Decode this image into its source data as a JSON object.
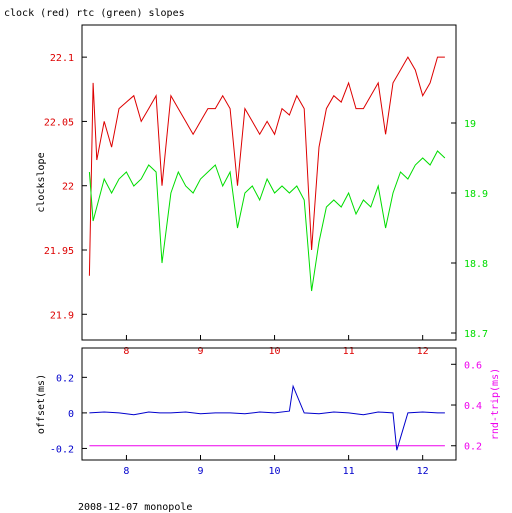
{
  "title": "clock (red) rtc (green) slopes",
  "footer": "2008-12-07 monopole",
  "colors": {
    "red": "#dd0000",
    "green": "#00dd00",
    "blue": "#0000cc",
    "magenta": "#ee00ee",
    "axis": "#000000"
  },
  "chart_data": [
    {
      "type": "line",
      "panel": "top",
      "ylabel": "clockslope",
      "xlim": [
        7.4,
        12.45
      ],
      "xticks": [
        8,
        9,
        10,
        11,
        12
      ],
      "ylim_left": [
        21.88,
        22.125
      ],
      "ylim_right": [
        18.69,
        19.14
      ],
      "yticks_left": [
        21.9,
        21.95,
        22,
        22.05,
        22.1
      ],
      "yticks_right": [
        18.7,
        18.8,
        18.9,
        19
      ],
      "series": [
        {
          "axis": "left",
          "color": "red",
          "x": [
            7.5,
            7.55,
            7.6,
            7.7,
            7.8,
            7.9,
            8.0,
            8.1,
            8.2,
            8.3,
            8.4,
            8.48,
            8.6,
            8.7,
            8.8,
            8.9,
            9.0,
            9.1,
            9.2,
            9.3,
            9.4,
            9.5,
            9.6,
            9.7,
            9.8,
            9.9,
            10.0,
            10.1,
            10.2,
            10.3,
            10.4,
            10.5,
            10.6,
            10.7,
            10.8,
            10.9,
            11.0,
            11.1,
            11.2,
            11.3,
            11.4,
            11.5,
            11.6,
            11.7,
            11.8,
            11.9,
            12.0,
            12.1,
            12.2,
            12.3
          ],
          "y": [
            21.93,
            22.08,
            22.02,
            22.05,
            22.03,
            22.06,
            22.065,
            22.07,
            22.05,
            22.06,
            22.07,
            22.0,
            22.07,
            22.06,
            22.05,
            22.04,
            22.05,
            22.06,
            22.06,
            22.07,
            22.06,
            22.0,
            22.06,
            22.05,
            22.04,
            22.05,
            22.04,
            22.06,
            22.055,
            22.07,
            22.06,
            21.95,
            22.03,
            22.06,
            22.07,
            22.065,
            22.08,
            22.06,
            22.06,
            22.07,
            22.08,
            22.04,
            22.08,
            22.09,
            22.1,
            22.09,
            22.07,
            22.08,
            22.1,
            22.1
          ]
        },
        {
          "axis": "right",
          "color": "green",
          "x": [
            7.5,
            7.55,
            7.6,
            7.7,
            7.8,
            7.9,
            8.0,
            8.1,
            8.2,
            8.3,
            8.4,
            8.48,
            8.6,
            8.7,
            8.8,
            8.9,
            9.0,
            9.1,
            9.2,
            9.3,
            9.4,
            9.5,
            9.6,
            9.7,
            9.8,
            9.9,
            10.0,
            10.1,
            10.2,
            10.3,
            10.4,
            10.5,
            10.6,
            10.7,
            10.8,
            10.9,
            11.0,
            11.1,
            11.2,
            11.3,
            11.4,
            11.5,
            11.6,
            11.7,
            11.8,
            11.9,
            12.0,
            12.1,
            12.2,
            12.3
          ],
          "y": [
            18.93,
            18.86,
            18.88,
            18.92,
            18.9,
            18.92,
            18.93,
            18.91,
            18.92,
            18.94,
            18.93,
            18.8,
            18.9,
            18.93,
            18.91,
            18.9,
            18.92,
            18.93,
            18.94,
            18.91,
            18.93,
            18.85,
            18.9,
            18.91,
            18.89,
            18.92,
            18.9,
            18.91,
            18.9,
            18.91,
            18.89,
            18.76,
            18.83,
            18.88,
            18.89,
            18.88,
            18.9,
            18.87,
            18.89,
            18.88,
            18.91,
            18.85,
            18.9,
            18.93,
            18.92,
            18.94,
            18.95,
            18.94,
            18.96,
            18.95
          ]
        }
      ]
    },
    {
      "type": "line",
      "panel": "bottom",
      "ylabel_left": "offset(ms)",
      "ylabel_right": "rnd-trip(ms)",
      "xlim": [
        7.4,
        12.45
      ],
      "xticks": [
        8,
        9,
        10,
        11,
        12
      ],
      "ylim_left": [
        -0.265,
        0.365
      ],
      "ylim_right": [
        0.13,
        0.68
      ],
      "yticks_left": [
        -0.2,
        0,
        0.2
      ],
      "yticks_left_labels": [
        "-0.2",
        "0",
        "0.2"
      ],
      "yticks_right": [
        0.2,
        0.4,
        0.6
      ],
      "series": [
        {
          "axis": "left",
          "color": "blue",
          "x": [
            7.5,
            7.7,
            7.9,
            8.1,
            8.3,
            8.45,
            8.6,
            8.8,
            9.0,
            9.2,
            9.4,
            9.6,
            9.8,
            10.0,
            10.2,
            10.25,
            10.4,
            10.6,
            10.8,
            11.0,
            11.2,
            11.4,
            11.6,
            11.65,
            11.8,
            12.0,
            12.2,
            12.3
          ],
          "y": [
            0.0,
            0.005,
            0.0,
            -0.01,
            0.005,
            0.0,
            0.0,
            0.005,
            -0.005,
            0.0,
            0.0,
            -0.005,
            0.005,
            0.0,
            0.01,
            0.15,
            0.0,
            -0.005,
            0.005,
            0.0,
            -0.01,
            0.005,
            0.0,
            -0.21,
            0.0,
            0.005,
            0.0,
            0.0
          ]
        },
        {
          "axis": "right",
          "color": "magenta",
          "x": [
            7.5,
            7.7,
            7.9,
            8.1,
            8.3,
            8.45,
            8.6,
            8.8,
            9.0,
            9.2,
            9.4,
            9.6,
            9.8,
            10.0,
            10.2,
            10.4,
            10.6,
            10.8,
            11.0,
            11.2,
            11.4,
            11.6,
            11.8,
            12.0,
            12.2,
            12.3
          ],
          "y": [
            0.2,
            0.2,
            0.2,
            0.2,
            0.2,
            0.2,
            0.2,
            0.2,
            0.2,
            0.2,
            0.2,
            0.2,
            0.2,
            0.2,
            0.2,
            0.2,
            0.2,
            0.2,
            0.2,
            0.2,
            0.2,
            0.2,
            0.2,
            0.2,
            0.2,
            0.2
          ]
        }
      ]
    }
  ]
}
